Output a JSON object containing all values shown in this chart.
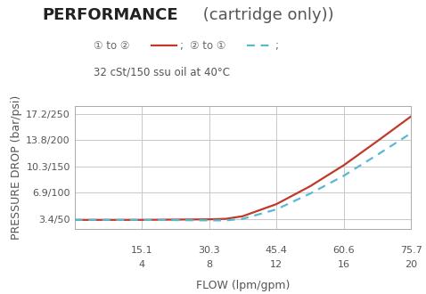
{
  "title_bold": "PERFORMANCE",
  "title_regular": " (cartridge only))",
  "legend_line2": "32 cSt/150 ssu oil at 40°C",
  "ylabel": "PRESSURE DROP (bar/psi)",
  "xlabel": "FLOW (lpm/gpm)",
  "ytick_labels": [
    "3.4/50",
    "6.9/100",
    "10.3/150",
    "13.8/200",
    "17.2/250"
  ],
  "ytick_values": [
    50,
    100,
    150,
    200,
    250
  ],
  "xtick_labels_top": [
    "15.1",
    "30.3",
    "45.4",
    "60.6",
    "75.7"
  ],
  "xtick_labels_bot": [
    "4",
    "8",
    "12",
    "16",
    "20"
  ],
  "xtick_values": [
    4,
    8,
    12,
    16,
    20
  ],
  "xlim": [
    0,
    20
  ],
  "ylim": [
    30,
    265
  ],
  "grid_color": "#c8c8c8",
  "bg_color": "#ffffff",
  "line1_color": "#c0392b",
  "line2_color": "#5bb8d4",
  "line1_x": [
    0,
    4,
    8,
    9,
    10,
    12,
    14,
    16,
    18,
    20
  ],
  "line1_y": [
    48,
    48,
    49,
    50,
    55,
    78,
    112,
    152,
    198,
    245
  ],
  "line2_x": [
    0,
    4,
    8,
    9,
    10,
    12,
    14,
    16,
    18,
    20
  ],
  "line2_y": [
    48,
    48,
    47,
    47,
    50,
    68,
    98,
    132,
    172,
    213
  ],
  "title_fontsize": 13,
  "label_fontsize": 9,
  "tick_fontsize": 8
}
